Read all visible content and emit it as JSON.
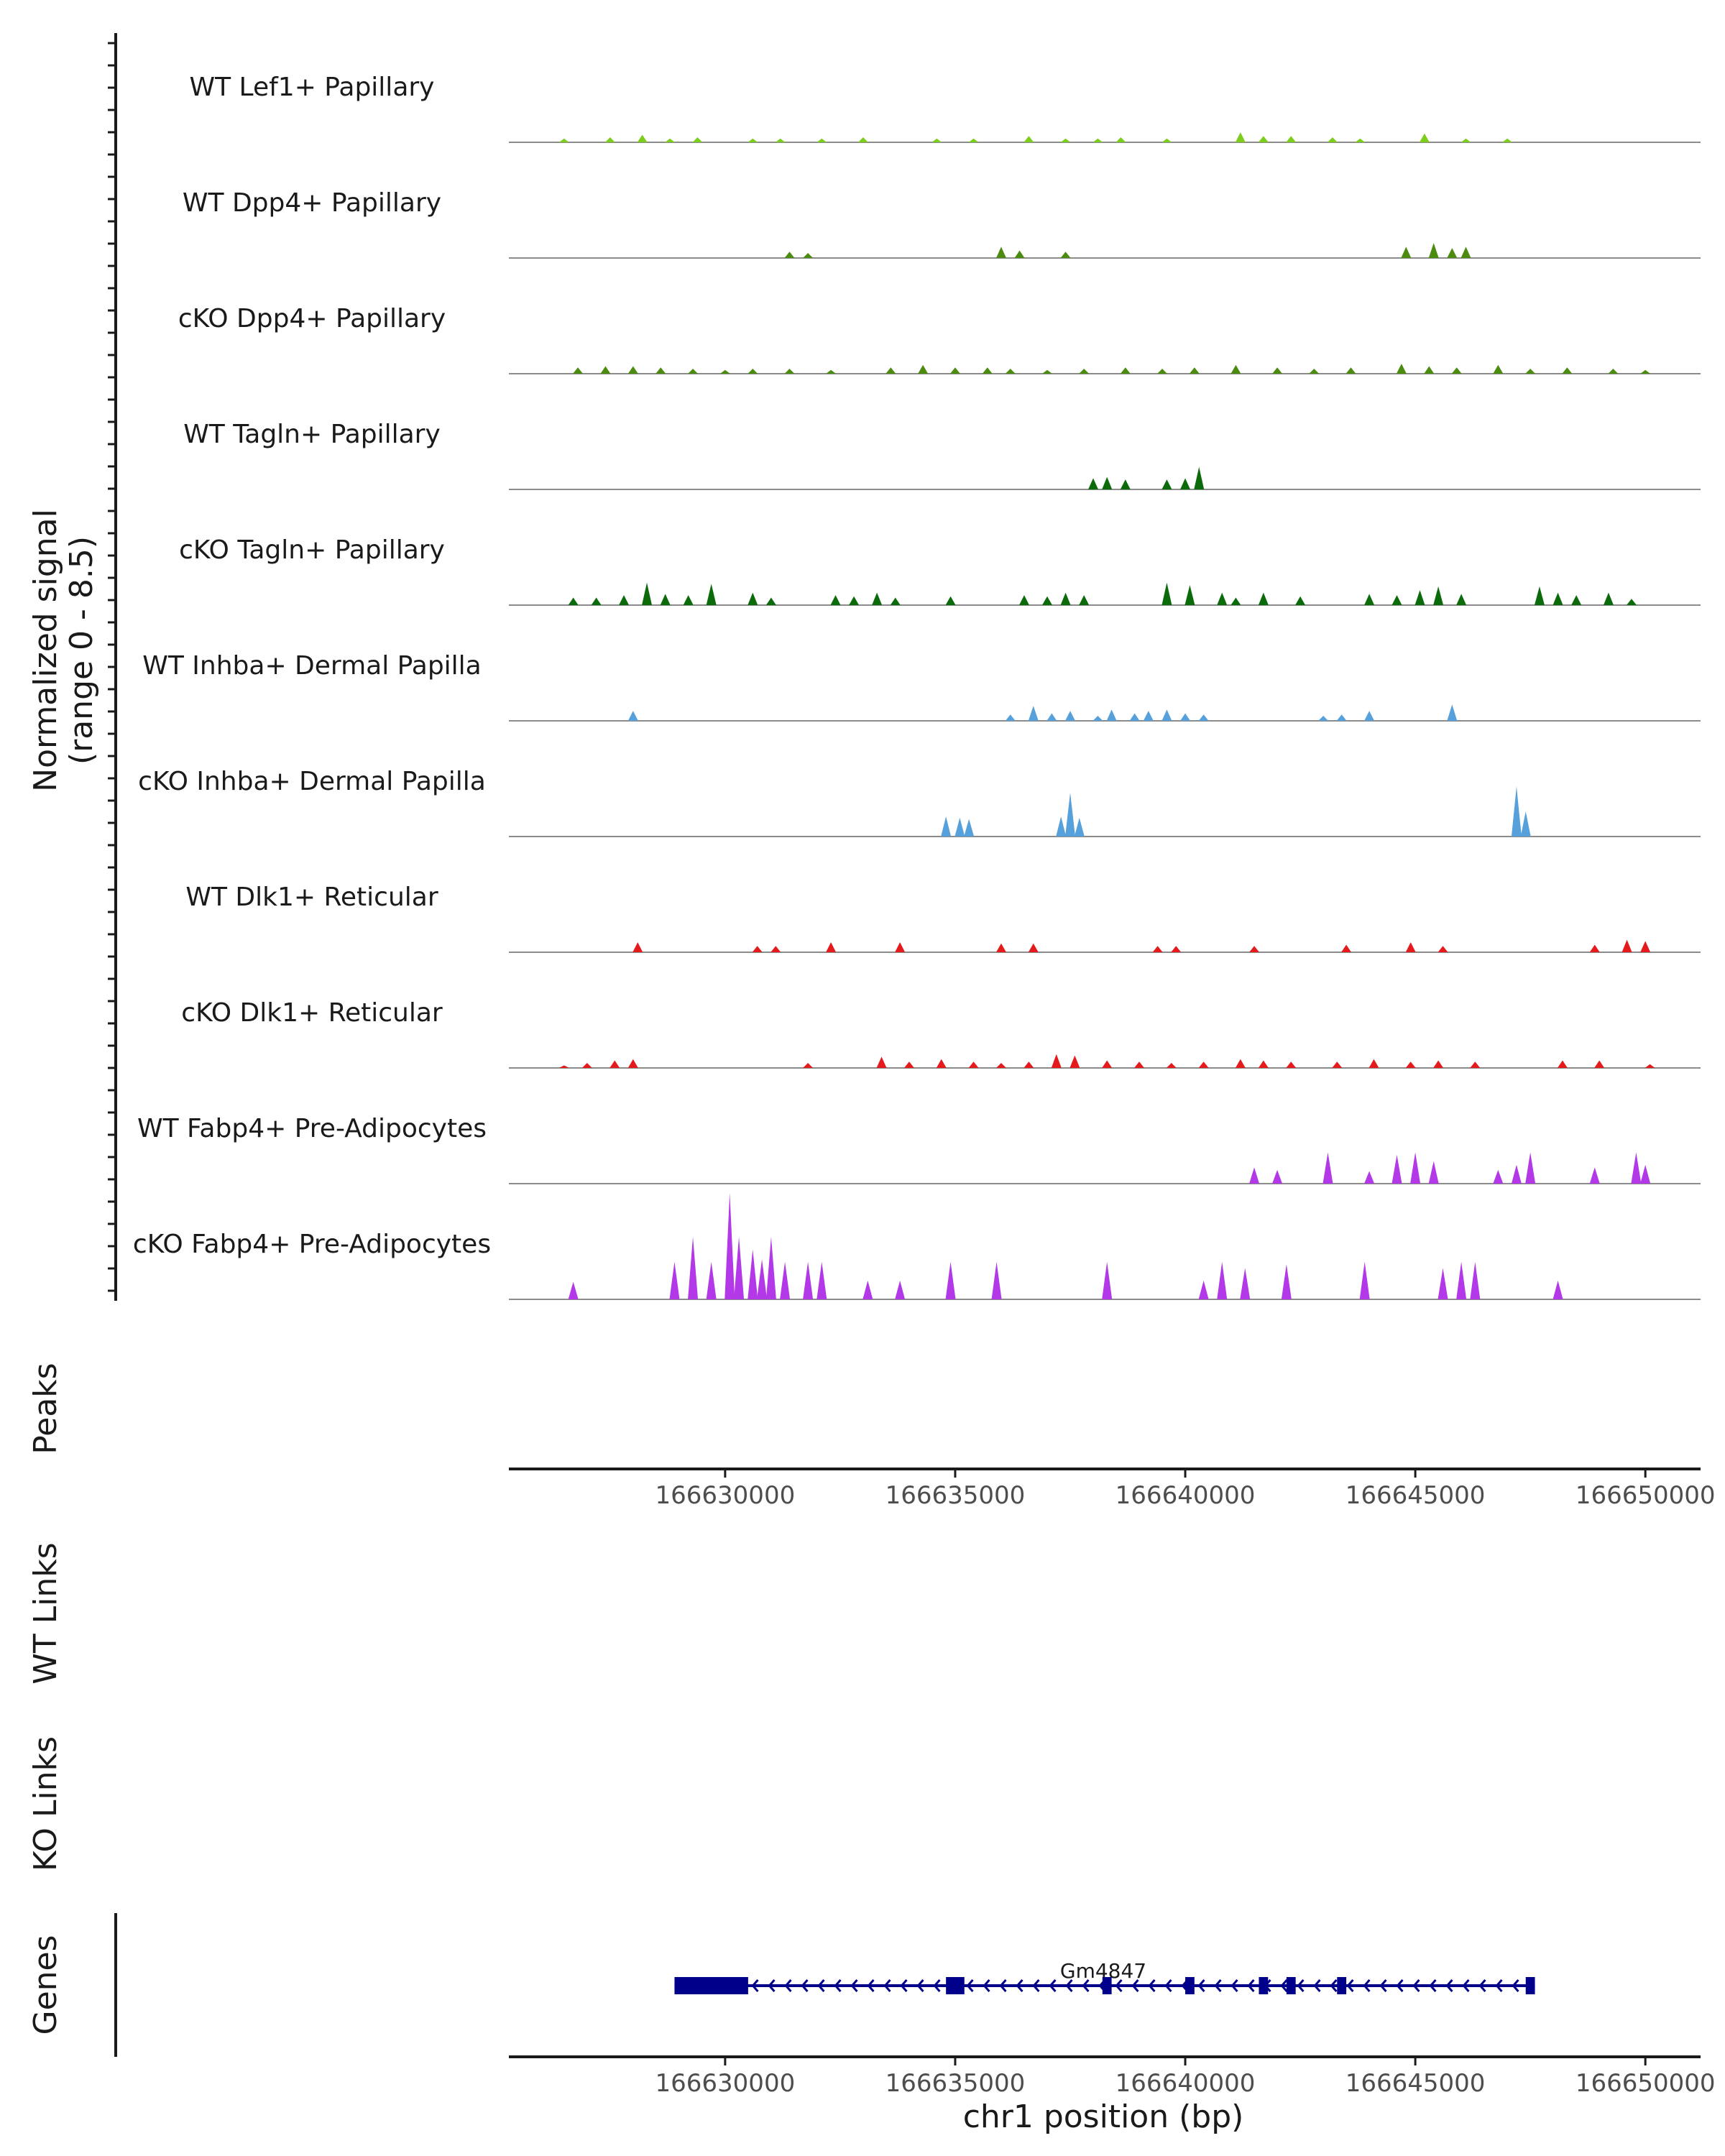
{
  "chart_data": {
    "type": "coverage",
    "title": "",
    "ylabel_line1": "Normalized signal",
    "ylabel_line2": "(range 0 - 8.5)",
    "ylim": [
      0,
      8.5
    ],
    "xlabel": "chr1 position (bp)",
    "chrom": "chr1",
    "xlim": [
      166625300,
      166651200
    ],
    "xticks": [
      166630000,
      166635000,
      166640000,
      166645000,
      166650000
    ],
    "xtick_labels": [
      "166630000",
      "166635000",
      "166640000",
      "166645000",
      "166650000"
    ],
    "tracks": [
      {
        "name": "WT Lef1+ Papillary",
        "color": "#7CCD1C",
        "peaks": [
          [
            166626500,
            0.3
          ],
          [
            166627500,
            0.4
          ],
          [
            166628200,
            0.6
          ],
          [
            166628800,
            0.3
          ],
          [
            166629400,
            0.4
          ],
          [
            166630600,
            0.3
          ],
          [
            166631200,
            0.3
          ],
          [
            166632100,
            0.3
          ],
          [
            166633000,
            0.4
          ],
          [
            166634600,
            0.3
          ],
          [
            166635400,
            0.3
          ],
          [
            166636600,
            0.5
          ],
          [
            166637400,
            0.3
          ],
          [
            166638100,
            0.3
          ],
          [
            166638600,
            0.4
          ],
          [
            166639600,
            0.3
          ],
          [
            166641200,
            0.8
          ],
          [
            166641700,
            0.5
          ],
          [
            166642300,
            0.5
          ],
          [
            166643200,
            0.4
          ],
          [
            166643800,
            0.3
          ],
          [
            166645200,
            0.7
          ],
          [
            166646100,
            0.3
          ],
          [
            166647000,
            0.3
          ]
        ]
      },
      {
        "name": "WT Dpp4+ Papillary",
        "color": "#4B8B0F",
        "peaks": [
          [
            166631400,
            0.5
          ],
          [
            166631800,
            0.4
          ],
          [
            166636000,
            0.9
          ],
          [
            166636400,
            0.6
          ],
          [
            166637400,
            0.5
          ],
          [
            166644800,
            0.9
          ],
          [
            166645400,
            1.2
          ],
          [
            166645800,
            0.8
          ],
          [
            166646100,
            0.9
          ]
        ]
      },
      {
        "name": "cKO Dpp4+ Papillary",
        "color": "#4B8B0F",
        "peaks": [
          [
            166626800,
            0.5
          ],
          [
            166627400,
            0.6
          ],
          [
            166628000,
            0.6
          ],
          [
            166628600,
            0.5
          ],
          [
            166629300,
            0.4
          ],
          [
            166630000,
            0.3
          ],
          [
            166630600,
            0.4
          ],
          [
            166631400,
            0.4
          ],
          [
            166632300,
            0.3
          ],
          [
            166633600,
            0.5
          ],
          [
            166634300,
            0.7
          ],
          [
            166635000,
            0.5
          ],
          [
            166635700,
            0.5
          ],
          [
            166636200,
            0.4
          ],
          [
            166637000,
            0.3
          ],
          [
            166637800,
            0.4
          ],
          [
            166638700,
            0.5
          ],
          [
            166639500,
            0.4
          ],
          [
            166640200,
            0.5
          ],
          [
            166641100,
            0.7
          ],
          [
            166642000,
            0.5
          ],
          [
            166642800,
            0.4
          ],
          [
            166643600,
            0.5
          ],
          [
            166644700,
            0.8
          ],
          [
            166645300,
            0.6
          ],
          [
            166645900,
            0.5
          ],
          [
            166646800,
            0.7
          ],
          [
            166647500,
            0.4
          ],
          [
            166648300,
            0.5
          ],
          [
            166649300,
            0.4
          ],
          [
            166650000,
            0.3
          ]
        ]
      },
      {
        "name": "WT Tagln+ Papillary",
        "color": "#0B6B0B",
        "peaks": [
          [
            166638000,
            0.9
          ],
          [
            166638300,
            1.0
          ],
          [
            166638700,
            0.8
          ],
          [
            166639600,
            0.8
          ],
          [
            166640000,
            0.9
          ],
          [
            166640300,
            1.8
          ]
        ]
      },
      {
        "name": "cKO Tagln+ Papillary",
        "color": "#0B6B0B",
        "peaks": [
          [
            166626700,
            0.6
          ],
          [
            166627200,
            0.6
          ],
          [
            166627800,
            0.8
          ],
          [
            166628300,
            1.8
          ],
          [
            166628700,
            0.9
          ],
          [
            166629200,
            0.8
          ],
          [
            166629700,
            1.7
          ],
          [
            166630600,
            1.0
          ],
          [
            166631000,
            0.6
          ],
          [
            166632400,
            0.8
          ],
          [
            166632800,
            0.7
          ],
          [
            166633300,
            1.0
          ],
          [
            166633700,
            0.6
          ],
          [
            166634900,
            0.7
          ],
          [
            166636500,
            0.8
          ],
          [
            166637000,
            0.7
          ],
          [
            166637400,
            1.0
          ],
          [
            166637800,
            0.8
          ],
          [
            166639600,
            1.8
          ],
          [
            166640100,
            1.6
          ],
          [
            166640800,
            1.0
          ],
          [
            166641100,
            0.6
          ],
          [
            166641700,
            1.0
          ],
          [
            166642500,
            0.7
          ],
          [
            166644000,
            0.9
          ],
          [
            166644600,
            0.8
          ],
          [
            166645100,
            1.2
          ],
          [
            166645500,
            1.5
          ],
          [
            166646000,
            0.9
          ],
          [
            166647700,
            1.5
          ],
          [
            166648100,
            1.0
          ],
          [
            166648500,
            0.8
          ],
          [
            166649200,
            1.0
          ],
          [
            166649700,
            0.5
          ]
        ]
      },
      {
        "name": "WT Inhba+ Dermal Papilla",
        "color": "#56A0DC",
        "peaks": [
          [
            166628000,
            0.8
          ],
          [
            166636200,
            0.5
          ],
          [
            166636700,
            1.2
          ],
          [
            166637100,
            0.6
          ],
          [
            166637500,
            0.8
          ],
          [
            166638100,
            0.4
          ],
          [
            166638400,
            0.9
          ],
          [
            166638900,
            0.6
          ],
          [
            166639200,
            0.8
          ],
          [
            166639600,
            0.9
          ],
          [
            166640000,
            0.6
          ],
          [
            166640400,
            0.5
          ],
          [
            166643000,
            0.4
          ],
          [
            166643400,
            0.5
          ],
          [
            166644000,
            0.8
          ],
          [
            166645800,
            1.3
          ]
        ]
      },
      {
        "name": "cKO Inhba+ Dermal Papilla",
        "color": "#56A0DC",
        "peaks": [
          [
            166634800,
            1.6
          ],
          [
            166635100,
            1.5
          ],
          [
            166635300,
            1.4
          ],
          [
            166637300,
            1.6
          ],
          [
            166637500,
            3.5
          ],
          [
            166637700,
            1.5
          ],
          [
            166647200,
            4.0
          ],
          [
            166647400,
            2.0
          ]
        ]
      },
      {
        "name": "WT Dlk1+ Reticular",
        "color": "#E41A1C",
        "peaks": [
          [
            166628100,
            0.8
          ],
          [
            166630700,
            0.5
          ],
          [
            166631100,
            0.5
          ],
          [
            166632300,
            0.8
          ],
          [
            166633800,
            0.8
          ],
          [
            166636000,
            0.7
          ],
          [
            166636700,
            0.7
          ],
          [
            166639400,
            0.5
          ],
          [
            166639800,
            0.5
          ],
          [
            166641500,
            0.5
          ],
          [
            166643500,
            0.6
          ],
          [
            166644900,
            0.8
          ],
          [
            166645600,
            0.5
          ],
          [
            166648900,
            0.6
          ],
          [
            166649600,
            1.0
          ],
          [
            166650000,
            0.9
          ]
        ]
      },
      {
        "name": "cKO Dlk1+ Reticular",
        "color": "#E41A1C",
        "peaks": [
          [
            166626500,
            0.2
          ],
          [
            166627000,
            0.4
          ],
          [
            166627600,
            0.6
          ],
          [
            166628000,
            0.7
          ],
          [
            166631800,
            0.4
          ],
          [
            166633400,
            0.9
          ],
          [
            166634000,
            0.5
          ],
          [
            166634700,
            0.7
          ],
          [
            166635400,
            0.5
          ],
          [
            166636000,
            0.4
          ],
          [
            166636600,
            0.5
          ],
          [
            166637200,
            1.1
          ],
          [
            166637600,
            1.0
          ],
          [
            166638300,
            0.6
          ],
          [
            166639000,
            0.5
          ],
          [
            166639700,
            0.4
          ],
          [
            166640400,
            0.5
          ],
          [
            166641200,
            0.7
          ],
          [
            166641700,
            0.6
          ],
          [
            166642300,
            0.5
          ],
          [
            166643300,
            0.5
          ],
          [
            166644100,
            0.7
          ],
          [
            166644900,
            0.5
          ],
          [
            166645500,
            0.6
          ],
          [
            166646300,
            0.5
          ],
          [
            166648200,
            0.6
          ],
          [
            166649000,
            0.6
          ],
          [
            166650100,
            0.3
          ]
        ]
      },
      {
        "name": "WT Fabp4+ Pre-Adipocytes",
        "color": "#B238E8",
        "peaks": [
          [
            166641500,
            1.3
          ],
          [
            166642000,
            1.1
          ],
          [
            166643100,
            2.5
          ],
          [
            166644000,
            1.0
          ],
          [
            166644600,
            2.3
          ],
          [
            166645000,
            2.5
          ],
          [
            166645400,
            1.8
          ],
          [
            166646800,
            1.1
          ],
          [
            166647200,
            1.5
          ],
          [
            166647500,
            2.5
          ],
          [
            166648900,
            1.3
          ],
          [
            166649800,
            2.5
          ],
          [
            166650000,
            1.5
          ]
        ]
      },
      {
        "name": "cKO Fabp4+ Pre-Adipocytes",
        "color": "#B238E8",
        "peaks": [
          [
            166626700,
            1.4
          ],
          [
            166628900,
            3.0
          ],
          [
            166629300,
            5.0
          ],
          [
            166629700,
            3.0
          ],
          [
            166630100,
            8.5
          ],
          [
            166630300,
            5.0
          ],
          [
            166630600,
            4.0
          ],
          [
            166630800,
            3.2
          ],
          [
            166631000,
            5.0
          ],
          [
            166631300,
            3.0
          ],
          [
            166631800,
            3.0
          ],
          [
            166632100,
            3.0
          ],
          [
            166633100,
            1.5
          ],
          [
            166633800,
            1.5
          ],
          [
            166634900,
            3.0
          ],
          [
            166635900,
            3.0
          ],
          [
            166638300,
            3.0
          ],
          [
            166640400,
            1.5
          ],
          [
            166640800,
            3.0
          ],
          [
            166641300,
            2.5
          ],
          [
            166642200,
            2.8
          ],
          [
            166643900,
            3.0
          ],
          [
            166645600,
            2.5
          ],
          [
            166646000,
            3.0
          ],
          [
            166646300,
            3.0
          ],
          [
            166648100,
            1.5
          ]
        ]
      }
    ],
    "sections": {
      "peaks": "Peaks",
      "wt_links": "WT Links",
      "ko_links": "KO Links",
      "genes": "Genes"
    },
    "gene": {
      "name": "Gm4847",
      "start": 166628900,
      "end": 166647600,
      "strand": "-",
      "color": "#00008B",
      "exons": [
        [
          166628900,
          166630500
        ],
        [
          166634800,
          166635200
        ],
        [
          166638200,
          166638400
        ],
        [
          166640000,
          166640200
        ],
        [
          166641600,
          166641800
        ],
        [
          166642200,
          166642400
        ],
        [
          166643300,
          166643500
        ],
        [
          166647400,
          166647600
        ]
      ]
    }
  }
}
